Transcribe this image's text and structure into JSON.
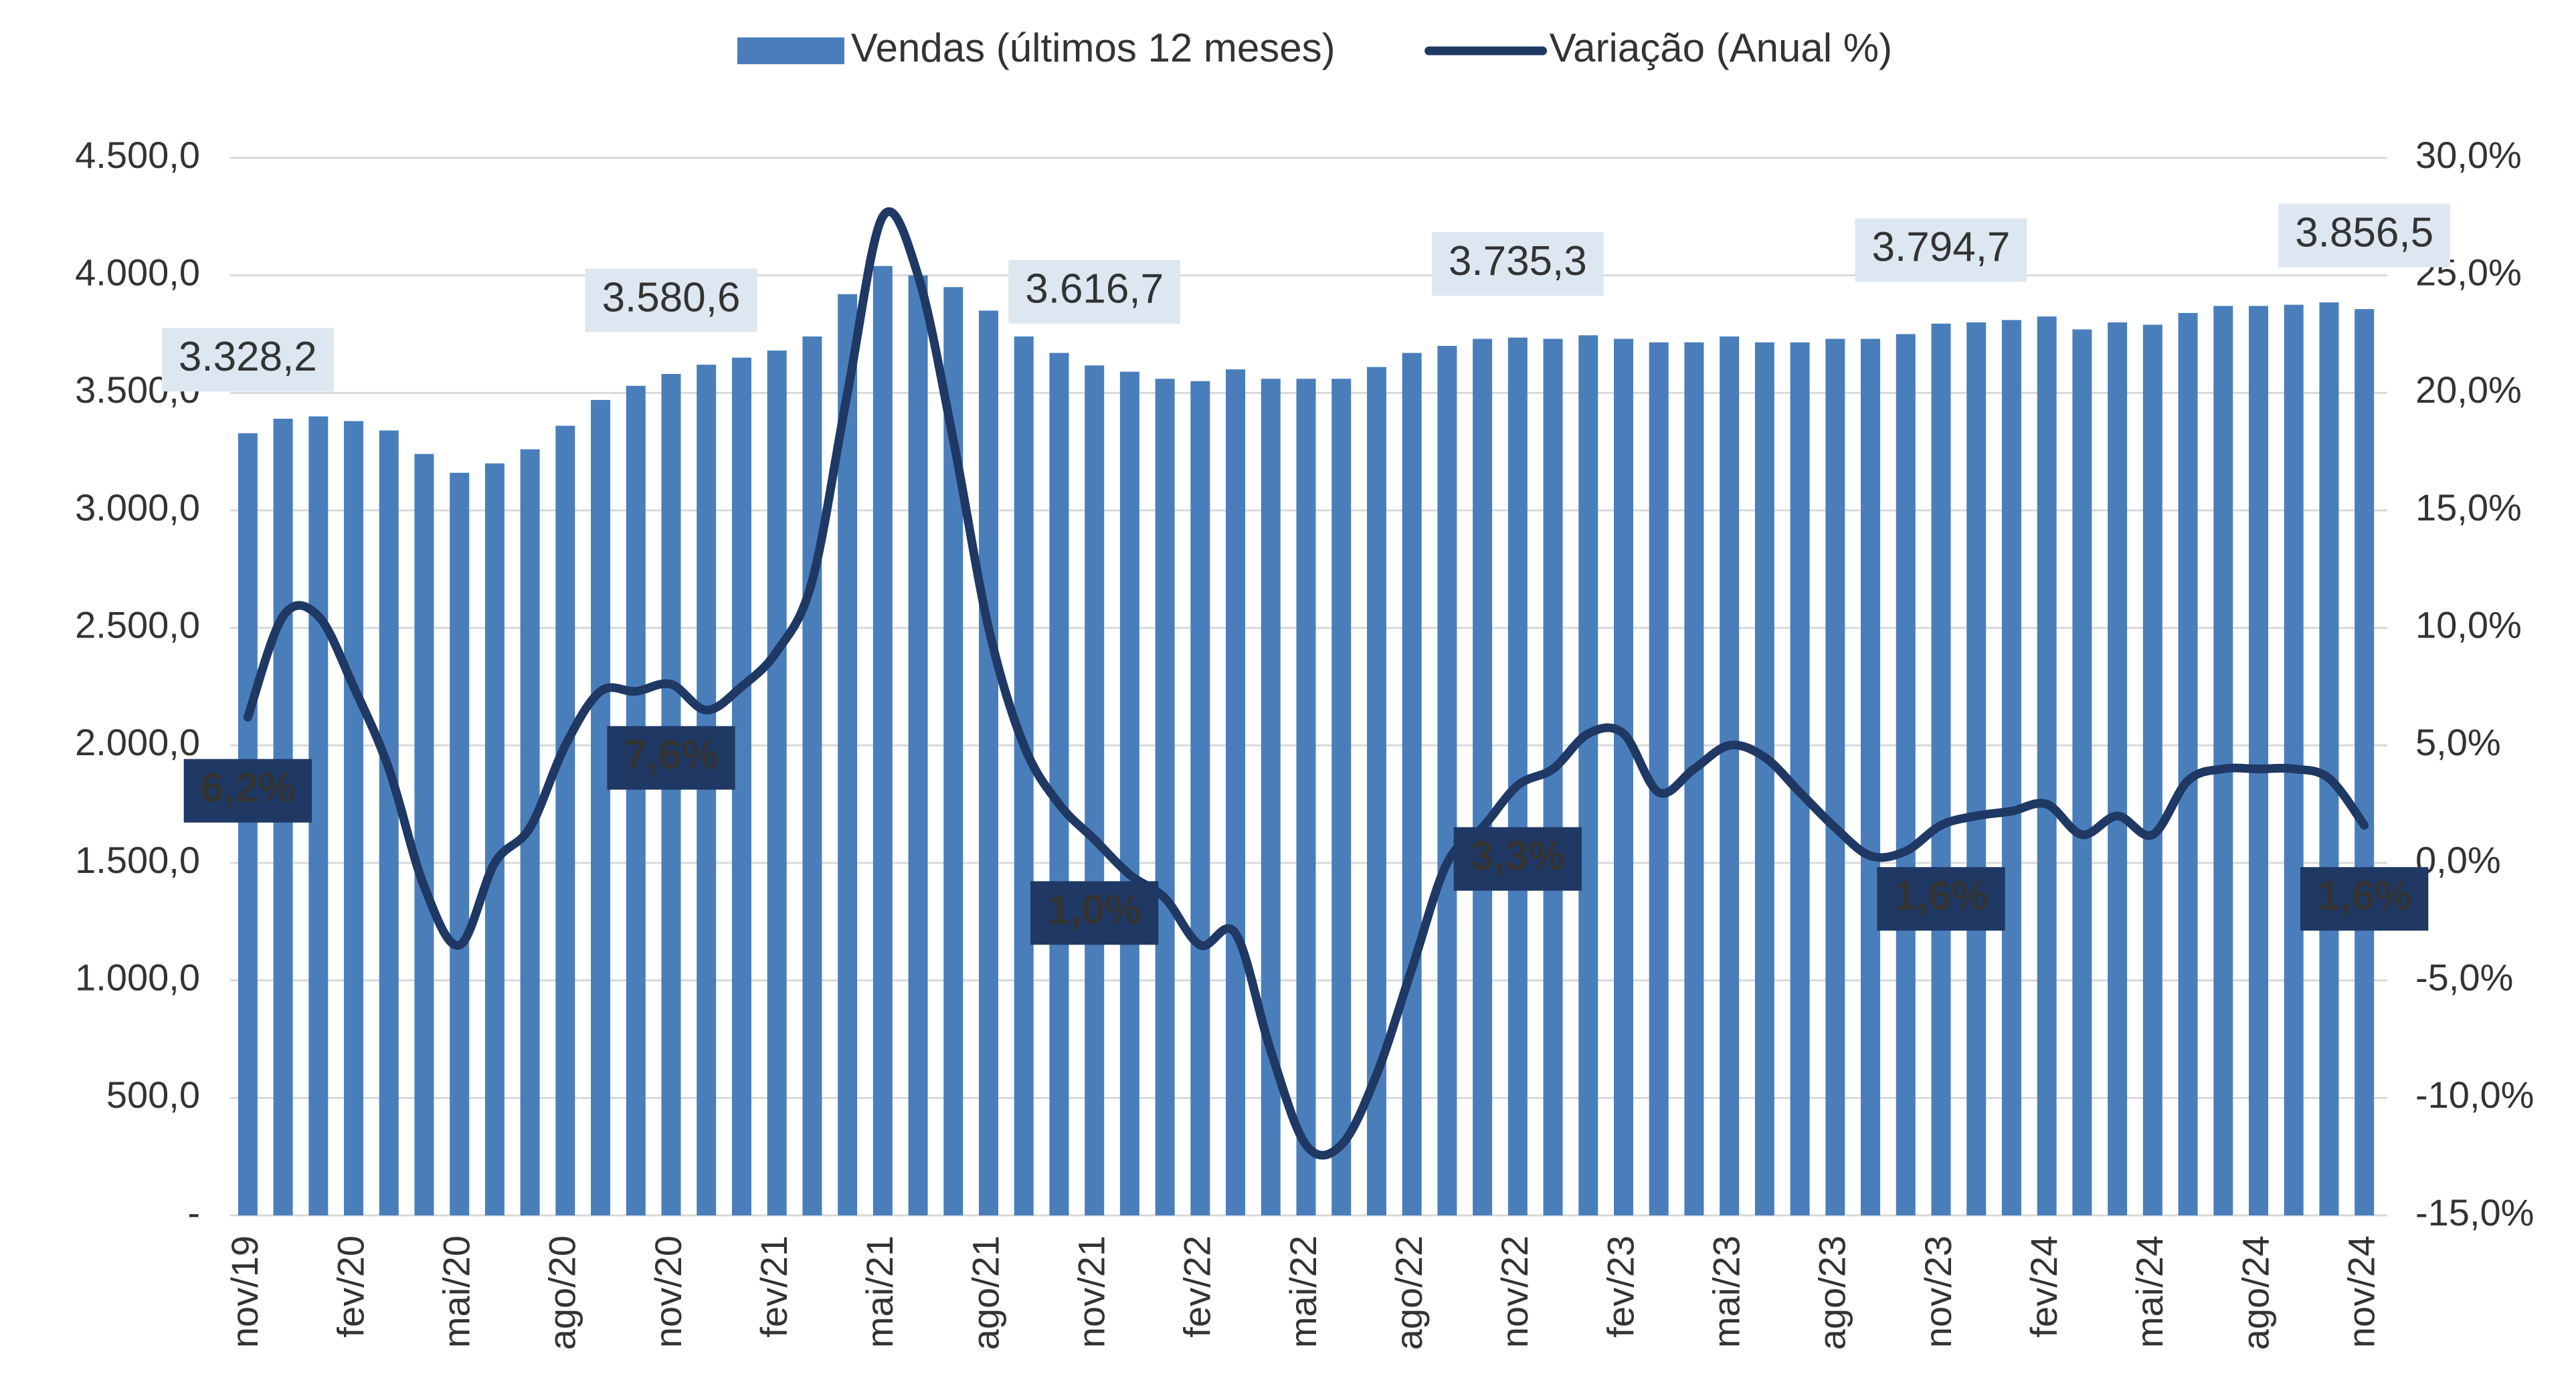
{
  "chart_data": {
    "type": "bar-line",
    "categories": [
      "nov/19",
      null,
      null,
      "fev/20",
      null,
      null,
      "mai/20",
      null,
      null,
      "ago/20",
      null,
      null,
      "nov/20",
      null,
      null,
      "fev/21",
      null,
      null,
      "mai/21",
      null,
      null,
      "ago/21",
      null,
      null,
      "nov/21",
      null,
      null,
      "fev/22",
      null,
      null,
      "mai/22",
      null,
      null,
      "ago/22",
      null,
      null,
      "nov/22",
      null,
      null,
      "fev/23",
      null,
      null,
      "mai/23",
      null,
      null,
      "ago/23",
      null,
      null,
      "nov/23",
      null,
      null,
      "fev/24",
      null,
      null,
      "mai/24",
      null,
      null,
      "ago/24",
      null,
      null,
      "nov/24"
    ],
    "series": [
      {
        "name": "Vendas (últimos 12 meses)",
        "type": "bar",
        "color": "#4a7ebb",
        "values": [
          3328.2,
          3390,
          3400,
          3380,
          3340,
          3240,
          3160,
          3200,
          3260,
          3360,
          3470,
          3530,
          3580.6,
          3620,
          3650,
          3680,
          3740,
          3920,
          4040,
          4000,
          3950,
          3850,
          3740,
          3670,
          3616.7,
          3590,
          3560,
          3550,
          3600,
          3560,
          3560,
          3560,
          3610,
          3670,
          3700,
          3730,
          3735.3,
          3730,
          3745,
          3730,
          3715,
          3715,
          3740,
          3715,
          3715,
          3730,
          3730,
          3750,
          3794.7,
          3800,
          3810,
          3825,
          3770,
          3800,
          3790,
          3840,
          3870,
          3870,
          3875,
          3885,
          3856.5
        ],
        "value_labels": [
          "3.328,2",
          null,
          null,
          null,
          null,
          null,
          null,
          null,
          null,
          null,
          null,
          null,
          "3.580,6",
          null,
          null,
          null,
          null,
          null,
          null,
          null,
          null,
          null,
          null,
          null,
          "3.616,7",
          null,
          null,
          null,
          null,
          null,
          null,
          null,
          null,
          null,
          null,
          null,
          "3.735,3",
          null,
          null,
          null,
          null,
          null,
          null,
          null,
          null,
          null,
          null,
          null,
          "3.794,7",
          null,
          null,
          null,
          null,
          null,
          null,
          null,
          null,
          null,
          null,
          null,
          "3.856,5"
        ]
      },
      {
        "name": "Variação (Anual %)",
        "type": "line",
        "axis": "y2",
        "color": "#1f3864",
        "values": [
          6.2,
          10.5,
          10.5,
          7.5,
          4,
          -1,
          -3.5,
          0,
          1.5,
          5,
          7.3,
          7.3,
          7.6,
          6.5,
          7.5,
          9,
          12,
          20,
          27.5,
          25,
          18,
          10,
          5,
          2.5,
          1.0,
          -0.5,
          -1.5,
          -3.5,
          -3,
          -8,
          -12,
          -12,
          -9,
          -4.5,
          0,
          1.5,
          3.3,
          4,
          5.5,
          5.5,
          3,
          4,
          5,
          4.5,
          3,
          1.5,
          0.3,
          0.5,
          1.6,
          2,
          2.2,
          2.5,
          1.2,
          2,
          1.2,
          3.5,
          4,
          4,
          4,
          3.6,
          1.6
        ],
        "value_labels": [
          "6,2%",
          null,
          null,
          null,
          null,
          null,
          null,
          null,
          null,
          null,
          null,
          null,
          "7,6%",
          null,
          null,
          null,
          null,
          null,
          null,
          null,
          null,
          null,
          null,
          null,
          "1,0%",
          null,
          null,
          null,
          null,
          null,
          null,
          null,
          null,
          null,
          null,
          null,
          "3,3%",
          null,
          null,
          null,
          null,
          null,
          null,
          null,
          null,
          null,
          null,
          null,
          "1,6%",
          null,
          null,
          null,
          null,
          null,
          null,
          null,
          null,
          null,
          null,
          null,
          "1,6%"
        ]
      }
    ],
    "ylim": [
      0,
      4500
    ],
    "yticks": [
      {
        "value": 0,
        "label": "-"
      },
      {
        "value": 500,
        "label": "500,0"
      },
      {
        "value": 1000,
        "label": "1.000,0"
      },
      {
        "value": 1500,
        "label": "1.500,0"
      },
      {
        "value": 2000,
        "label": "2.000,0"
      },
      {
        "value": 2500,
        "label": "2.500,0"
      },
      {
        "value": 3000,
        "label": "3.000,0"
      },
      {
        "value": 3500,
        "label": "3.500,0"
      },
      {
        "value": 4000,
        "label": "4.000,0"
      },
      {
        "value": 4500,
        "label": "4.500,0"
      }
    ],
    "y2lim": [
      -15,
      30
    ],
    "y2ticks": [
      {
        "value": -15,
        "label": "-15,0%"
      },
      {
        "value": -10,
        "label": "-10,0%"
      },
      {
        "value": -5,
        "label": "-5,0%"
      },
      {
        "value": 0,
        "label": "0,0%"
      },
      {
        "value": 5,
        "label": "5,0%"
      },
      {
        "value": 10,
        "label": "10,0%"
      },
      {
        "value": 15,
        "label": "15,0%"
      },
      {
        "value": 20,
        "label": "20,0%"
      },
      {
        "value": 25,
        "label": "25,0%"
      },
      {
        "value": 30,
        "label": "30,0%"
      }
    ],
    "grid": true,
    "legend": "top"
  }
}
